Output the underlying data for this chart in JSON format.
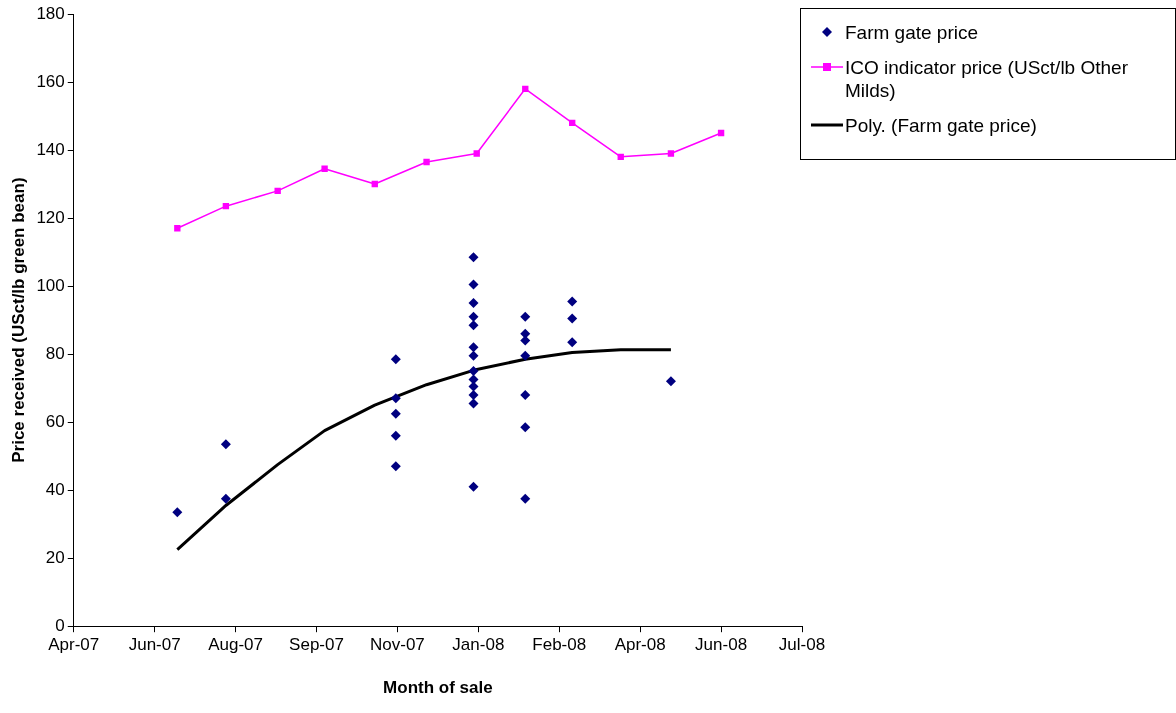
{
  "chart_data": {
    "type": "scatter",
    "xlabel": "Month of sale",
    "ylabel": "Price received (USct/lb green bean)",
    "xlim": [
      "2007-04-30",
      "2008-07-23"
    ],
    "xticks": [
      {
        "value": "2007-04-30",
        "label": "Apr-07"
      },
      {
        "value": "2007-06-19",
        "label": "Jun-07"
      },
      {
        "value": "2007-08-08",
        "label": "Aug-07"
      },
      {
        "value": "2007-09-27",
        "label": "Sep-07"
      },
      {
        "value": "2007-11-16",
        "label": "Nov-07"
      },
      {
        "value": "2008-01-05",
        "label": "Jan-08"
      },
      {
        "value": "2008-02-24",
        "label": "Feb-08"
      },
      {
        "value": "2008-04-14",
        "label": "Apr-08"
      },
      {
        "value": "2008-06-03",
        "label": "Jun-08"
      },
      {
        "value": "2008-07-23",
        "label": "Jul-08"
      }
    ],
    "ylim": [
      0,
      180
    ],
    "yticks": [
      0,
      20,
      40,
      60,
      80,
      100,
      120,
      140,
      160,
      180
    ],
    "grid": false,
    "legend": "top right",
    "series": [
      {
        "name": "Farm gate price",
        "type": "scatter",
        "marker": "diamond",
        "color": "#000080",
        "x": [
          "2007-07-03",
          "2007-08-02",
          "2007-08-02",
          "2007-11-15",
          "2007-11-15",
          "2007-11-15",
          "2007-11-15",
          "2007-11-15",
          "2008-01-02",
          "2008-01-02",
          "2008-01-02",
          "2008-01-02",
          "2008-01-02",
          "2008-01-02",
          "2008-01-02",
          "2008-01-02",
          "2008-01-02",
          "2008-01-02",
          "2008-01-02",
          "2008-01-02",
          "2008-01-02",
          "2008-02-03",
          "2008-02-03",
          "2008-02-03",
          "2008-02-03",
          "2008-02-03",
          "2008-02-03",
          "2008-02-03",
          "2008-03-03",
          "2008-03-03",
          "2008-03-03",
          "2008-05-03"
        ],
        "values": [
          33.5,
          53.5,
          37.5,
          78.5,
          67,
          62.5,
          56,
          47,
          108.5,
          100.5,
          95,
          91,
          88.5,
          82,
          79.5,
          75,
          72.5,
          70.5,
          68,
          65.5,
          41,
          91,
          86,
          84,
          79.5,
          68,
          58.5,
          37.5,
          95.5,
          90.5,
          83.5,
          72
        ]
      },
      {
        "name": "ICO indicator price (USct/lb Other Milds)",
        "type": "line",
        "marker": "square",
        "line_style": "solid",
        "color": "#ff00ff",
        "x": [
          "2007-07-03",
          "2007-08-02",
          "2007-09-03",
          "2007-10-02",
          "2007-11-02",
          "2007-12-04",
          "2008-01-04",
          "2008-02-03",
          "2008-03-03",
          "2008-04-02",
          "2008-05-03",
          "2008-06-03"
        ],
        "values": [
          117,
          123.5,
          128,
          134.5,
          130,
          136.5,
          139,
          158,
          148,
          138,
          139,
          145
        ]
      },
      {
        "name": "Poly. (Farm gate price)",
        "type": "line",
        "marker": "none",
        "line_style": "solid",
        "color": "#000000",
        "x": [
          "2007-07-03",
          "2007-08-02",
          "2007-09-03",
          "2007-10-02",
          "2007-11-02",
          "2007-12-04",
          "2008-01-04",
          "2008-02-03",
          "2008-03-03",
          "2008-04-02",
          "2008-05-03"
        ],
        "values": [
          22.5,
          35.5,
          47.5,
          57.5,
          65,
          71,
          75.5,
          78.5,
          80.5,
          81.3,
          81.3
        ]
      }
    ]
  }
}
